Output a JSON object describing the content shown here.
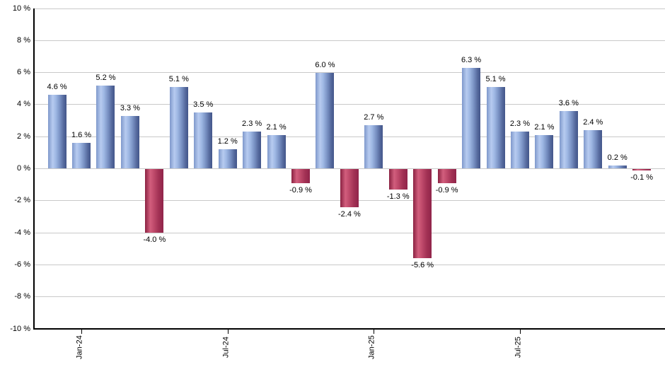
{
  "chart_data": {
    "type": "bar",
    "unit": "%",
    "values": [
      4.6,
      1.6,
      5.2,
      3.3,
      -4.0,
      5.1,
      3.5,
      1.2,
      2.3,
      2.1,
      -0.9,
      6.0,
      -2.4,
      2.7,
      -1.3,
      -5.6,
      -0.9,
      6.3,
      5.1,
      2.3,
      2.1,
      3.6,
      2.4,
      0.2,
      -0.1
    ],
    "bar_labels": [
      "4.6 %",
      "1.6 %",
      "5.2 %",
      "3.3 %",
      "-4.0 %",
      "5.1 %",
      "3.5 %",
      "1.2 %",
      "2.3 %",
      "2.1 %",
      "-0.9 %",
      "6.0 %",
      "-2.4 %",
      "2.7 %",
      "-1.3 %",
      "-5.6 %",
      "-0.9 %",
      "6.3 %",
      "5.1 %",
      "2.3 %",
      "2.1 %",
      "3.6 %",
      "2.4 %",
      "0.2 %",
      "-0.1 %"
    ],
    "x_ticks": [
      {
        "label": "Jan-24",
        "bar_index": 1
      },
      {
        "label": "Jul-24",
        "bar_index": 7
      },
      {
        "label": "Jan-25",
        "bar_index": 13
      },
      {
        "label": "Jul-25",
        "bar_index": 19
      }
    ],
    "y_ticks": [
      {
        "label": "10 %",
        "value": 10
      },
      {
        "label": "8 %",
        "value": 8
      },
      {
        "label": "6 %",
        "value": 6
      },
      {
        "label": "4 %",
        "value": 4
      },
      {
        "label": "2 %",
        "value": 2
      },
      {
        "label": "0 %",
        "value": 0
      },
      {
        "label": "-2 %",
        "value": -2
      },
      {
        "label": "-4 %",
        "value": -4
      },
      {
        "label": "-6 %",
        "value": -6
      },
      {
        "label": "-8 %",
        "value": -8
      },
      {
        "label": "-10 %",
        "value": -10
      }
    ],
    "ylim": [
      -10,
      10
    ],
    "grid": true,
    "legend": null,
    "colors": {
      "positive_bar": "#9db8e3",
      "negative_bar": "#c54a6c",
      "gridline": "#c9c9c9",
      "axis": "#000000",
      "text": "#000000"
    }
  }
}
